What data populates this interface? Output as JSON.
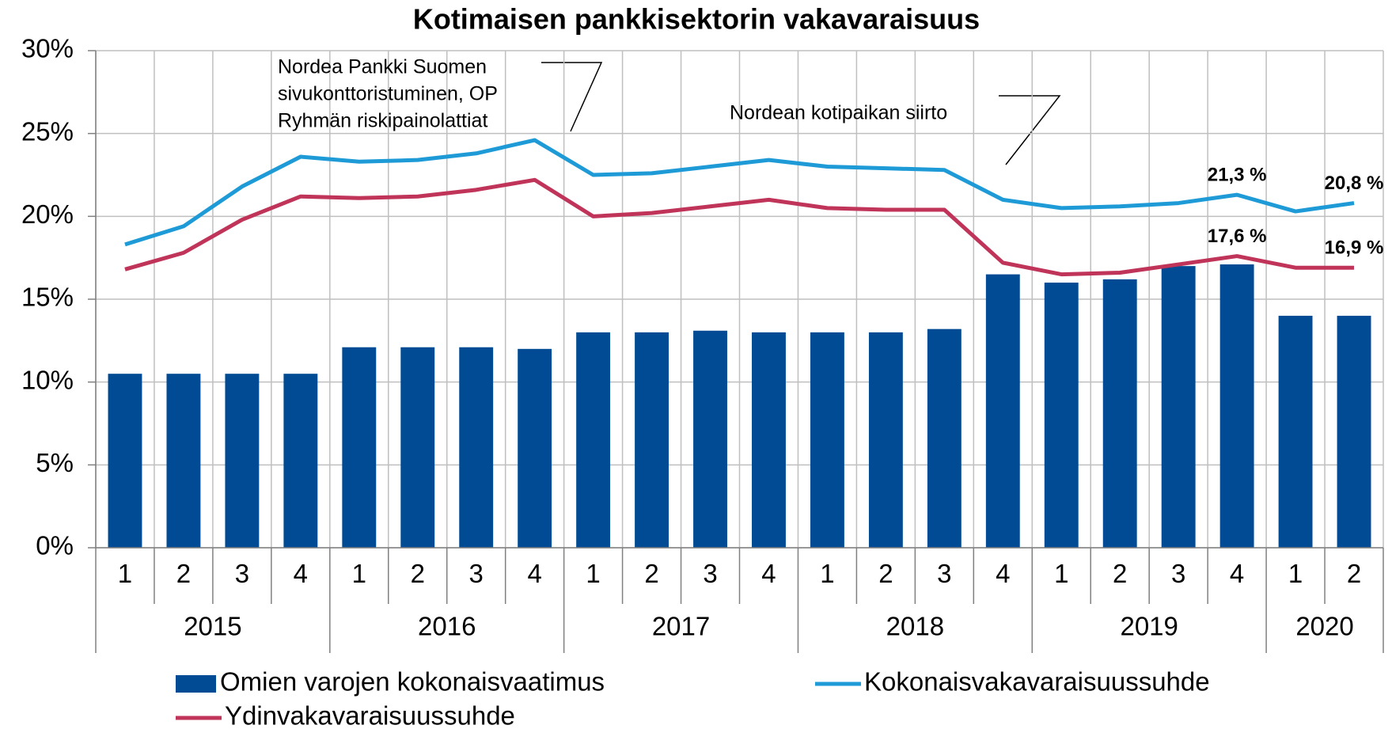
{
  "chart_data": {
    "type": "bar-line",
    "title": "Kotimaisen pankkisektorin vakavaraisuus",
    "categories": [
      "1",
      "2",
      "3",
      "4",
      "1",
      "2",
      "3",
      "4",
      "1",
      "2",
      "3",
      "4",
      "1",
      "2",
      "3",
      "4",
      "1",
      "2",
      "3",
      "4",
      "1",
      "2"
    ],
    "category_groups": [
      {
        "label": "2015",
        "size": 4
      },
      {
        "label": "2016",
        "size": 4
      },
      {
        "label": "2017",
        "size": 4
      },
      {
        "label": "2018",
        "size": 4
      },
      {
        "label": "2019",
        "size": 4
      },
      {
        "label": "2020",
        "size": 2
      }
    ],
    "series": [
      {
        "name": "Omien varojen kokonaisvaatimus",
        "type": "bar",
        "color": "#004b93",
        "values": [
          10.5,
          10.5,
          10.5,
          10.5,
          12.1,
          12.1,
          12.1,
          12.0,
          13.0,
          13.0,
          13.1,
          13.0,
          13.0,
          13.0,
          13.2,
          16.5,
          16.0,
          16.2,
          17.0,
          17.1,
          14.0,
          14.0
        ]
      },
      {
        "name": "Kokonaisvakavaraisuussuhde",
        "type": "line",
        "color": "#1e9bd7",
        "values": [
          18.3,
          19.4,
          21.8,
          23.6,
          23.3,
          23.4,
          23.8,
          24.6,
          22.5,
          22.6,
          23.0,
          23.4,
          23.0,
          22.9,
          22.8,
          21.0,
          20.5,
          20.6,
          20.8,
          21.3,
          20.3,
          20.8
        ],
        "value_labels": [
          null,
          null,
          null,
          null,
          null,
          null,
          null,
          null,
          null,
          null,
          null,
          null,
          null,
          null,
          null,
          null,
          null,
          null,
          null,
          "21,3 %",
          null,
          "20,8 %"
        ]
      },
      {
        "name": "Ydinvakavaraisuussuhde",
        "type": "line",
        "color": "#c0345a",
        "values": [
          16.8,
          17.8,
          19.8,
          21.2,
          21.1,
          21.2,
          21.6,
          22.2,
          20.0,
          20.2,
          20.6,
          21.0,
          20.5,
          20.4,
          20.4,
          17.2,
          16.5,
          16.6,
          17.1,
          17.6,
          16.9,
          16.9
        ],
        "value_labels": [
          null,
          null,
          null,
          null,
          null,
          null,
          null,
          null,
          null,
          null,
          null,
          null,
          null,
          null,
          null,
          null,
          null,
          null,
          null,
          "17,6 %",
          null,
          "16,9 %"
        ]
      }
    ],
    "ylim": [
      0,
      30
    ],
    "yticks": [
      {
        "value": 0,
        "label": "0%"
      },
      {
        "value": 5,
        "label": "5%"
      },
      {
        "value": 10,
        "label": "10%"
      },
      {
        "value": 15,
        "label": "15%"
      },
      {
        "value": 20,
        "label": "20%"
      },
      {
        "value": 25,
        "label": "25%"
      },
      {
        "value": 30,
        "label": "30%"
      }
    ],
    "grid": true,
    "annotations": [
      {
        "lines": [
          "Nordea Pankki Suomen",
          "sivukonttoristuminen, OP",
          "Ryhmän riskipainolattiat"
        ]
      },
      {
        "lines": [
          "Nordean kotipaikan siirto"
        ]
      }
    ]
  }
}
